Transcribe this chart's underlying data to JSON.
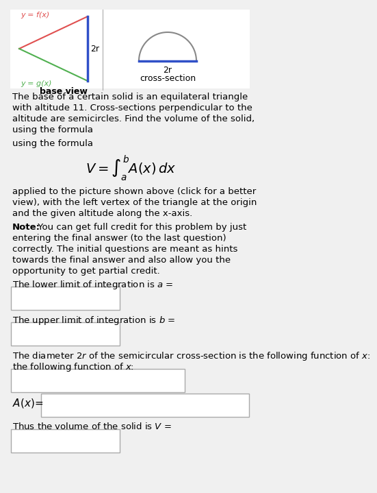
{
  "bg_color": "#f0f0f0",
  "title_diagram_left": "y = f(x)",
  "title_diagram_right": "cross-section",
  "label_base": "base view",
  "label_2r_left": "2r",
  "label_2r_right": "2r",
  "label_ygx": "y = g(x)",
  "body_text": [
    "The base of a certain solid is an equilateral triangle",
    "with altitude 11. Cross-sections perpendicular to the",
    "altitude are semicircles. Find the volume of the solid,",
    "using the formula"
  ],
  "formula": "V = \\int_a^b A(x)\\, dx",
  "applied_text": [
    "applied to the picture shown above (click for a better",
    "view), with the left vertex of the triangle at the origin",
    "and the given altitude along the x-axis."
  ],
  "note_bold": "Note:",
  "note_text": " You can get full credit for this problem by just entering the final answer (to the last question) correctly. The initial questions are meant as hints towards the final answer and also allow you the opportunity to get partial credit.",
  "q1": "The lower limit of integration is $a$ =",
  "q2": "The upper limit of integration is $b$ =",
  "q3": "The diameter $2r$ of the semicircular cross-section is the following function of $x$:",
  "q4": "$A(x)$=",
  "q5": "Thus the volume of the solid is $V$ ="
}
